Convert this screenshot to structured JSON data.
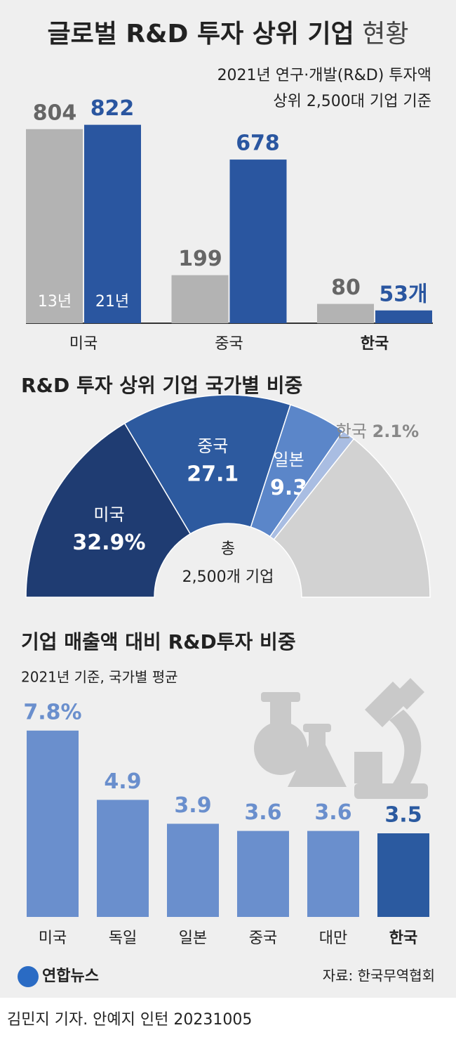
{
  "header": {
    "title": "글로벌 R&D 투자 상위 기업",
    "title_light": "현황"
  },
  "chart_data": [
    {
      "type": "grouped-bar",
      "subtitle": [
        "2021년 연구·개발(R&D) 투자액",
        "상위 2,500대 기업 기준"
      ],
      "categories": [
        "미국",
        "중국",
        "한국"
      ],
      "ylim": [
        0,
        850
      ],
      "series": [
        {
          "name": "13년",
          "color": "#b3b3b3",
          "label_color": "#666666",
          "values": [
            804,
            199,
            80
          ]
        },
        {
          "name": "21년",
          "color": "#2a56a0",
          "label_color": "#2a56a0",
          "values": [
            822,
            678,
            53
          ],
          "value_labels": [
            "822",
            "678",
            "53개"
          ]
        }
      ]
    },
    {
      "type": "half-donut",
      "title": "R&D 투자 상위 기업 국가별 비중",
      "center_text": [
        "총",
        "2,500개 기업"
      ],
      "categories": [
        "미국",
        "중국",
        "일본",
        "한국",
        null
      ],
      "values": [
        32.9,
        27.1,
        9.3,
        2.1,
        28.6
      ],
      "value_labels": [
        "32.9%",
        "27.1",
        "9.3",
        "2.1%",
        null
      ],
      "colors": [
        "#1f3c72",
        "#2d5a9f",
        "#5b86c9",
        "#a9bde2",
        "#d2d2d2"
      ]
    },
    {
      "type": "bar",
      "title": "기업 매출액 대비 R&D투자 비중",
      "subtitle": "2021년 기준, 국가별 평균",
      "categories": [
        "미국",
        "독일",
        "일본",
        "중국",
        "대만",
        "한국"
      ],
      "values": [
        7.8,
        4.9,
        3.9,
        3.6,
        3.6,
        3.5
      ],
      "value_labels": [
        "7.8%",
        "4.9",
        "3.9",
        "3.6",
        "3.6",
        "3.5"
      ],
      "colors": [
        "#6a8fcd",
        "#6a8fcd",
        "#6a8fcd",
        "#6a8fcd",
        "#6a8fcd",
        "#2b5aa0"
      ],
      "ylim": [
        0,
        8
      ]
    }
  ],
  "footer": {
    "logo": "연합뉴스",
    "source": "자료: 한국무역협회",
    "byline": "김민지 기자. 안예지 인턴  20231005"
  }
}
